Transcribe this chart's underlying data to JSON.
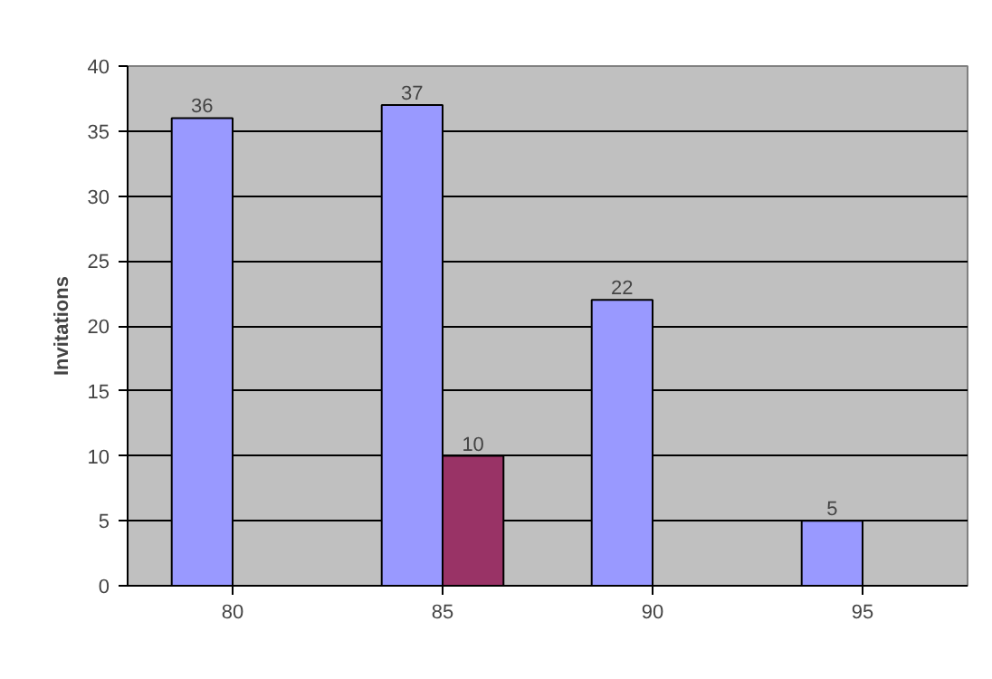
{
  "chart_data": {
    "type": "bar",
    "categories": [
      "80",
      "85",
      "90",
      "95"
    ],
    "ylabel": "Invitations",
    "ylim": [
      0,
      40
    ],
    "yticks": [
      0,
      5,
      10,
      15,
      20,
      25,
      30,
      35,
      40
    ],
    "grid": "y",
    "data_labels": true,
    "series": [
      {
        "color": "#9999ff",
        "values": [
          36,
          37,
          22,
          5
        ]
      },
      {
        "color": "#993366",
        "values": [
          null,
          10,
          null,
          null
        ]
      }
    ]
  }
}
